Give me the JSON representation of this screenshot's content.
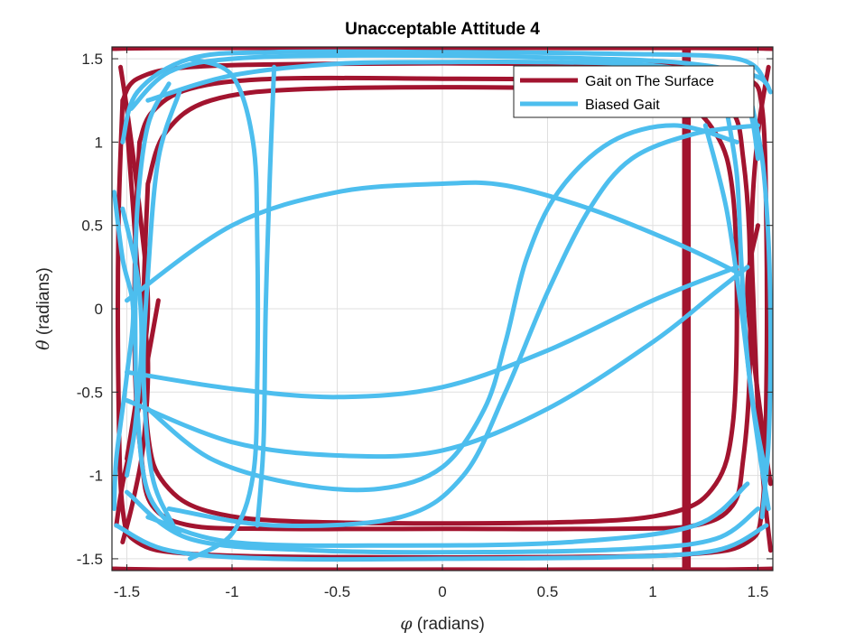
{
  "chart_data": {
    "type": "line",
    "title": "Unacceptable Attitude 4",
    "xlabel_symbol": "φ",
    "xlabel_text": " (radians)",
    "ylabel_symbol": "θ",
    "ylabel_text": " (radians)",
    "xlim": [
      -1.5708,
      1.5708
    ],
    "ylim": [
      -1.5708,
      1.5708
    ],
    "xticks": [
      -1.5,
      -1,
      -0.5,
      0,
      0.5,
      1,
      1.5
    ],
    "yticks": [
      -1.5,
      -1,
      -0.5,
      0,
      0.5,
      1,
      1.5
    ],
    "xtick_labels": [
      "-1.5",
      "-1",
      "-0.5",
      "0",
      "0.5",
      "1",
      "1.5"
    ],
    "ytick_labels": [
      "-1.5",
      "-1",
      "-0.5",
      "0",
      "0.5",
      "1",
      "1.5"
    ],
    "grid": true,
    "legend_position": "top-right",
    "series": [
      {
        "name": "Gait on The Surface",
        "color": "#a2142f",
        "curves": [
          [
            [
              -1.44,
              1.0
            ],
            [
              -1.38,
              1.18
            ],
            [
              -1.2,
              1.32
            ],
            [
              -0.8,
              1.38
            ],
            [
              0,
              1.38
            ],
            [
              0.8,
              1.37
            ],
            [
              1.2,
              1.32
            ],
            [
              1.38,
              1.18
            ],
            [
              1.43,
              0.9
            ],
            [
              1.46,
              0.4
            ],
            [
              1.46,
              -0.4
            ],
            [
              1.43,
              -0.9
            ],
            [
              1.38,
              -1.18
            ],
            [
              1.2,
              -1.3
            ],
            [
              0.8,
              -1.32
            ],
            [
              0,
              -1.32
            ],
            [
              -0.8,
              -1.32
            ],
            [
              -1.2,
              -1.3
            ],
            [
              -1.38,
              -1.18
            ],
            [
              -1.43,
              -0.9
            ],
            [
              -1.46,
              -0.4
            ],
            [
              -1.46,
              0.4
            ],
            [
              -1.44,
              1.0
            ]
          ],
          [
            [
              -1.52,
              1.25
            ],
            [
              -1.45,
              1.38
            ],
            [
              -1.2,
              1.45
            ],
            [
              -0.5,
              1.47
            ],
            [
              0.5,
              1.47
            ],
            [
              1.2,
              1.45
            ],
            [
              1.45,
              1.38
            ],
            [
              1.52,
              1.2
            ],
            [
              1.54,
              0.5
            ],
            [
              1.54,
              -0.5
            ],
            [
              1.52,
              -1.2
            ],
            [
              1.45,
              -1.4
            ],
            [
              1.2,
              -1.47
            ],
            [
              0.5,
              -1.49
            ],
            [
              -0.5,
              -1.49
            ],
            [
              -1.2,
              -1.47
            ],
            [
              -1.45,
              -1.4
            ],
            [
              -1.52,
              -1.2
            ],
            [
              -1.54,
              -0.5
            ],
            [
              -1.54,
              0.5
            ],
            [
              -1.52,
              1.25
            ]
          ],
          [
            [
              -1.4,
              0.75
            ],
            [
              -1.32,
              1.05
            ],
            [
              -1.1,
              1.25
            ],
            [
              -0.6,
              1.32
            ],
            [
              0.6,
              1.32
            ],
            [
              1.1,
              1.25
            ],
            [
              1.3,
              1.05
            ],
            [
              1.38,
              0.7
            ],
            [
              1.4,
              0
            ],
            [
              1.38,
              -0.7
            ],
            [
              1.3,
              -1.05
            ],
            [
              1.1,
              -1.22
            ],
            [
              0.6,
              -1.28
            ],
            [
              -0.6,
              -1.28
            ],
            [
              -1.1,
              -1.22
            ],
            [
              -1.32,
              -1.05
            ],
            [
              -1.4,
              -0.75
            ],
            [
              -1.42,
              0
            ],
            [
              -1.4,
              0.75
            ]
          ],
          [
            [
              -1.57,
              1.56
            ],
            [
              -1.2,
              1.565
            ],
            [
              0,
              1.565
            ],
            [
              1.2,
              1.565
            ],
            [
              1.57,
              1.56
            ]
          ],
          [
            [
              -1.57,
              -1.56
            ],
            [
              -1.2,
              -1.565
            ],
            [
              0,
              -1.565
            ],
            [
              1.2,
              -1.565
            ],
            [
              1.57,
              -1.56
            ]
          ],
          [
            [
              1.15,
              1.55
            ],
            [
              1.15,
              1.3
            ],
            [
              1.15,
              0.8
            ],
            [
              1.15,
              0
            ],
            [
              1.15,
              -0.8
            ],
            [
              1.15,
              -1.3
            ],
            [
              1.15,
              -1.55
            ]
          ],
          [
            [
              1.17,
              1.55
            ],
            [
              1.17,
              1.1
            ],
            [
              1.17,
              0.3
            ],
            [
              1.17,
              -0.5
            ],
            [
              1.17,
              -1.2
            ],
            [
              1.17,
              -1.55
            ]
          ],
          [
            [
              -1.5,
              1.1
            ],
            [
              -1.47,
              0.6
            ],
            [
              -1.44,
              0.1
            ],
            [
              -1.4,
              -0.3
            ],
            [
              -1.42,
              -0.8
            ],
            [
              -1.47,
              -1.15
            ],
            [
              -1.52,
              -1.4
            ]
          ],
          [
            [
              -1.35,
              0.05
            ],
            [
              -1.4,
              -0.3
            ],
            [
              -1.46,
              -0.7
            ],
            [
              -1.52,
              -1.05
            ],
            [
              -1.55,
              -1.3
            ]
          ],
          [
            [
              1.55,
              1.45
            ],
            [
              1.5,
              1.05
            ],
            [
              1.47,
              0.5
            ],
            [
              1.48,
              0
            ],
            [
              1.5,
              -0.6
            ],
            [
              1.53,
              -1.1
            ],
            [
              1.56,
              -1.45
            ]
          ],
          [
            [
              1.5,
              0.5
            ],
            [
              1.45,
              0.15
            ],
            [
              1.48,
              -0.3
            ],
            [
              1.53,
              -0.8
            ],
            [
              1.56,
              -1.05
            ]
          ],
          [
            [
              -1.53,
              1.45
            ],
            [
              -1.5,
              1.2
            ],
            [
              -1.44,
              0.6
            ],
            [
              -1.4,
              0.0
            ],
            [
              -1.45,
              -0.5
            ],
            [
              -1.5,
              -0.9
            ]
          ]
        ]
      },
      {
        "name": "Biased Gait",
        "color": "#4dbeee",
        "curves": [
          [
            [
              -1.2,
              1.5
            ],
            [
              -1.0,
              1.4
            ],
            [
              -0.9,
              1.0
            ],
            [
              -0.88,
              0.4
            ],
            [
              -0.88,
              -0.4
            ],
            [
              -0.9,
              -1.0
            ],
            [
              -1.0,
              -1.35
            ],
            [
              -1.2,
              -1.5
            ]
          ],
          [
            [
              -0.8,
              1.45
            ],
            [
              -0.82,
              0.8
            ],
            [
              -0.84,
              0
            ],
            [
              -0.85,
              -0.8
            ],
            [
              -0.88,
              -1.3
            ]
          ],
          [
            [
              -1.5,
              0.05
            ],
            [
              -1.0,
              0.5
            ],
            [
              -0.5,
              0.7
            ],
            [
              0,
              0.75
            ],
            [
              0.3,
              0.74
            ],
            [
              0.7,
              0.6
            ],
            [
              1.1,
              0.4
            ],
            [
              1.4,
              0.22
            ]
          ],
          [
            [
              -1.5,
              -0.38
            ],
            [
              -1.0,
              -0.48
            ],
            [
              -0.5,
              -0.53
            ],
            [
              0,
              -0.47
            ],
            [
              0.5,
              -0.25
            ],
            [
              1.0,
              0.05
            ],
            [
              1.4,
              0.25
            ]
          ],
          [
            [
              -1.5,
              -0.55
            ],
            [
              -1.0,
              -0.8
            ],
            [
              -0.5,
              -0.88
            ],
            [
              0,
              -0.85
            ],
            [
              0.5,
              -0.6
            ],
            [
              1.0,
              -0.2
            ],
            [
              1.3,
              0.1
            ],
            [
              1.45,
              0.25
            ]
          ],
          [
            [
              -1.4,
              -0.6
            ],
            [
              -1.1,
              -0.9
            ],
            [
              -0.7,
              -1.05
            ],
            [
              -0.3,
              -1.08
            ],
            [
              0,
              -0.95
            ],
            [
              0.2,
              -0.6
            ],
            [
              0.3,
              -0.2
            ],
            [
              0.4,
              0.3
            ],
            [
              0.55,
              0.7
            ],
            [
              0.8,
              1.0
            ],
            [
              1.1,
              1.1
            ],
            [
              1.4,
              1.0
            ]
          ],
          [
            [
              -1.3,
              -1.2
            ],
            [
              -0.8,
              -1.3
            ],
            [
              -0.2,
              -1.25
            ],
            [
              0.1,
              -1.0
            ],
            [
              0.3,
              -0.5
            ],
            [
              0.5,
              0.1
            ],
            [
              0.7,
              0.6
            ],
            [
              0.9,
              0.9
            ],
            [
              1.2,
              1.05
            ],
            [
              1.5,
              1.1
            ]
          ],
          [
            [
              -1.4,
              1.25
            ],
            [
              -1.0,
              1.4
            ],
            [
              -0.5,
              1.47
            ],
            [
              0,
              1.48
            ],
            [
              0.5,
              1.48
            ],
            [
              1.0,
              1.46
            ],
            [
              1.3,
              1.38
            ],
            [
              1.45,
              1.22
            ],
            [
              1.5,
              0.9
            ]
          ],
          [
            [
              -1.52,
              1.0
            ],
            [
              -1.45,
              1.3
            ],
            [
              -1.2,
              1.5
            ],
            [
              -0.8,
              1.54
            ],
            [
              0,
              1.54
            ],
            [
              0.8,
              1.53
            ],
            [
              1.4,
              1.5
            ],
            [
              1.54,
              1.35
            ]
          ],
          [
            [
              -1.48,
              1.2
            ],
            [
              -1.3,
              1.42
            ],
            [
              -1.0,
              1.5
            ],
            [
              -0.4,
              1.52
            ],
            [
              0.4,
              1.51
            ],
            [
              1.1,
              1.48
            ],
            [
              1.48,
              1.4
            ],
            [
              1.56,
              1.3
            ]
          ],
          [
            [
              -1.3,
              1.35
            ],
            [
              -1.4,
              1.1
            ],
            [
              -1.45,
              0.6
            ],
            [
              -1.46,
              0
            ],
            [
              -1.45,
              -0.6
            ],
            [
              -1.4,
              -1.1
            ],
            [
              -1.25,
              -1.35
            ]
          ],
          [
            [
              -1.25,
              1.3
            ],
            [
              -1.35,
              0.9
            ],
            [
              -1.4,
              0.2
            ],
            [
              -1.42,
              -0.4
            ],
            [
              -1.38,
              -1.0
            ],
            [
              -1.28,
              -1.3
            ]
          ],
          [
            [
              -1.55,
              -1.3
            ],
            [
              -1.3,
              -1.45
            ],
            [
              -0.8,
              -1.5
            ],
            [
              0,
              -1.5
            ],
            [
              0.8,
              -1.49
            ],
            [
              1.3,
              -1.45
            ],
            [
              1.54,
              -1.3
            ]
          ],
          [
            [
              -1.5,
              -1.1
            ],
            [
              -1.2,
              -1.38
            ],
            [
              -0.6,
              -1.45
            ],
            [
              0.2,
              -1.46
            ],
            [
              0.9,
              -1.44
            ],
            [
              1.3,
              -1.38
            ],
            [
              1.5,
              -1.2
            ]
          ],
          [
            [
              -1.4,
              -1.25
            ],
            [
              -1.0,
              -1.4
            ],
            [
              -0.2,
              -1.42
            ],
            [
              0.6,
              -1.4
            ],
            [
              1.2,
              -1.3
            ],
            [
              1.45,
              -1.05
            ]
          ],
          [
            [
              1.35,
              1.2
            ],
            [
              1.4,
              0.8
            ],
            [
              1.42,
              0.3
            ],
            [
              1.45,
              -0.3
            ],
            [
              1.5,
              -0.8
            ],
            [
              1.55,
              -1.2
            ]
          ],
          [
            [
              1.25,
              1.1
            ],
            [
              1.35,
              0.6
            ],
            [
              1.42,
              0
            ],
            [
              1.48,
              -0.6
            ],
            [
              1.54,
              -1.0
            ]
          ],
          [
            [
              1.45,
              1.35
            ],
            [
              1.52,
              0.9
            ],
            [
              1.55,
              0.4
            ],
            [
              1.56,
              -0.2
            ],
            [
              1.55,
              -0.8
            ],
            [
              1.52,
              -1.25
            ]
          ],
          [
            [
              -1.56,
              0.7
            ],
            [
              -1.52,
              0.3
            ],
            [
              -1.47,
              0
            ],
            [
              -1.5,
              -0.4
            ],
            [
              -1.55,
              -0.9
            ],
            [
              -1.56,
              -1.2
            ]
          ],
          [
            [
              -1.52,
              0.6
            ],
            [
              -1.45,
              0.2
            ],
            [
              -1.43,
              -0.2
            ],
            [
              -1.46,
              -0.7
            ],
            [
              -1.5,
              -1.0
            ]
          ]
        ]
      }
    ]
  }
}
